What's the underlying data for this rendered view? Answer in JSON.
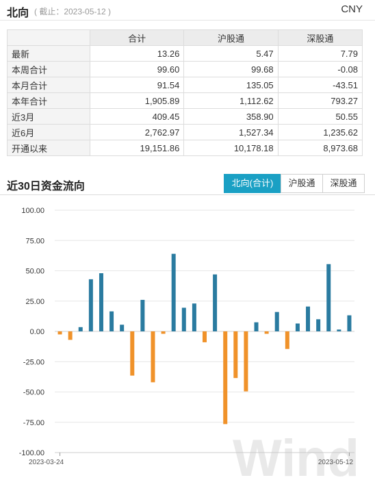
{
  "header": {
    "title": "北向",
    "date_note": "( 截止：2023-05-12 )",
    "currency": "CNY"
  },
  "table": {
    "columns": [
      "合计",
      "沪股通",
      "深股通"
    ],
    "rows": [
      {
        "label": "最新",
        "values": [
          "13.26",
          "5.47",
          "7.79"
        ]
      },
      {
        "label": "本周合计",
        "values": [
          "99.60",
          "99.68",
          "-0.08"
        ]
      },
      {
        "label": "本月合计",
        "values": [
          "91.54",
          "135.05",
          "-43.51"
        ]
      },
      {
        "label": "本年合计",
        "values": [
          "1,905.89",
          "1,112.62",
          "793.27"
        ]
      },
      {
        "label": "近3月",
        "values": [
          "409.45",
          "358.90",
          "50.55"
        ]
      },
      {
        "label": "近6月",
        "values": [
          "2,762.97",
          "1,527.34",
          "1,235.62"
        ]
      },
      {
        "label": "开通以来",
        "values": [
          "19,151.86",
          "10,178.18",
          "8,973.68"
        ]
      }
    ]
  },
  "section": {
    "title": "近30日资金流向",
    "buttons": [
      {
        "label": "北向(合计)",
        "active": true
      },
      {
        "label": "沪股通",
        "active": false
      },
      {
        "label": "深股通",
        "active": false
      }
    ]
  },
  "watermark": "Wind",
  "chart_data": {
    "type": "bar",
    "x_first_label": "2023-03-24",
    "x_last_label": "2023-05-12",
    "ylim": [
      -100,
      100
    ],
    "yticks": [
      "100.00",
      "75.00",
      "50.00",
      "25.00",
      "0.00",
      "-25.00",
      "-50.00",
      "-75.00",
      "-100.00"
    ],
    "values": [
      -2.5,
      -7,
      3.5,
      43,
      48,
      16.5,
      5.5,
      -36.5,
      26,
      -42,
      -2,
      64,
      19.5,
      23,
      -9,
      47,
      -76.5,
      -38.5,
      -49.5,
      7.5,
      -2,
      16,
      -14.5,
      6.5,
      20.5,
      10,
      55.5,
      1.5,
      13.26
    ],
    "colors": {
      "positive": "#2a7ba0",
      "negative": "#f0922a"
    }
  }
}
